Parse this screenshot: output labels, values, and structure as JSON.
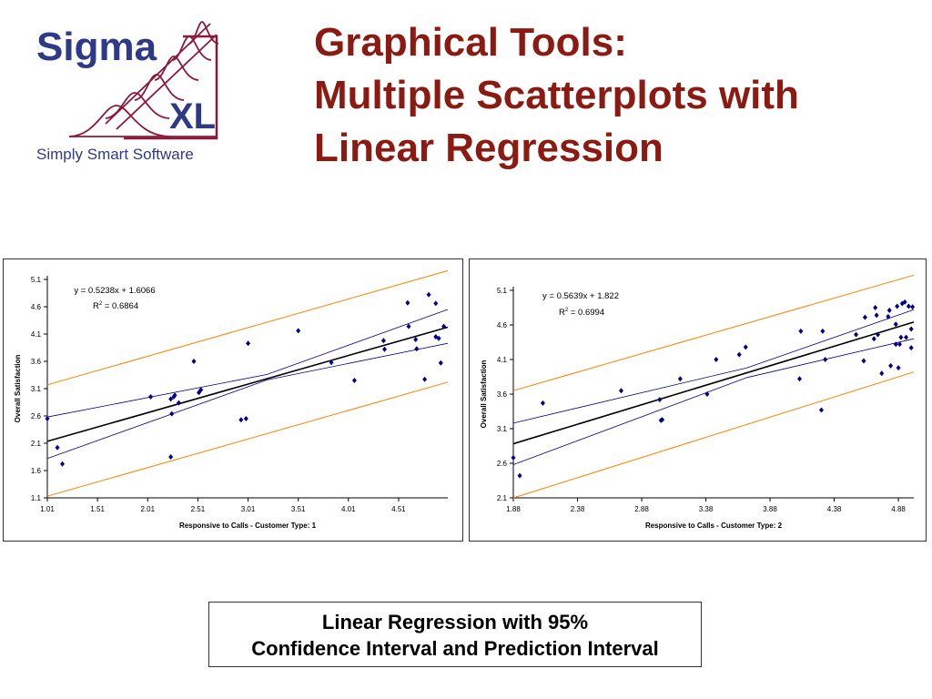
{
  "logo": {
    "brand_top": "Sigma",
    "brand_bottom": "XL",
    "tagline": "Simply Smart Software",
    "colors": {
      "navy": "#2E3A87",
      "maroon": "#8B1A3A"
    }
  },
  "title": {
    "line1": "Graphical Tools:",
    "line2": "Multiple Scatterplots with",
    "line3": "Linear Regression",
    "color": "#8B1A12"
  },
  "caption": {
    "line1": "Linear Regression with 95%",
    "line2": "Confidence Interval and Prediction Interval"
  },
  "chart_data": [
    {
      "type": "scatter",
      "xlabel": "Responsive to Calls - Customer Type: 1",
      "ylabel": "Overall Satisfaction",
      "xticks": [
        "1.01",
        "1.51",
        "2.01",
        "2.51",
        "3.01",
        "3.51",
        "4.01",
        "4.51"
      ],
      "yticks": [
        "1.1",
        "1.6",
        "2.1",
        "2.6",
        "3.1",
        "3.6",
        "4.1",
        "4.6",
        "5.1"
      ],
      "xlim": [
        1.01,
        5.0
      ],
      "ylim": [
        1.1,
        5.1
      ],
      "equation": "y = 0.5238x + 1.6066",
      "r2": "= 0.6864",
      "r2_prefix": "R",
      "regression": {
        "slope": 0.5238,
        "intercept": 1.6066
      },
      "ci_lower": [
        [
          1.01,
          1.82
        ],
        [
          3.2,
          3.26
        ],
        [
          5.0,
          3.93
        ]
      ],
      "ci_upper": [
        [
          1.01,
          2.58
        ],
        [
          3.2,
          3.36
        ],
        [
          5.0,
          4.55
        ]
      ],
      "pi_lower": [
        [
          1.01,
          1.13
        ],
        [
          5.0,
          3.22
        ]
      ],
      "pi_upper": [
        [
          1.01,
          3.17
        ],
        [
          5.0,
          5.26
        ]
      ],
      "points": [
        [
          1.01,
          2.55
        ],
        [
          1.11,
          2.02
        ],
        [
          1.16,
          1.72
        ],
        [
          2.04,
          2.95
        ],
        [
          2.24,
          2.91
        ],
        [
          2.27,
          2.95
        ],
        [
          2.25,
          2.64
        ],
        [
          2.28,
          2.98
        ],
        [
          2.32,
          2.84
        ],
        [
          2.24,
          1.85
        ],
        [
          2.47,
          3.6
        ],
        [
          2.52,
          3.03
        ],
        [
          2.54,
          3.08
        ],
        [
          2.94,
          2.53
        ],
        [
          2.99,
          2.55
        ],
        [
          3.01,
          3.93
        ],
        [
          3.51,
          4.16
        ],
        [
          3.84,
          3.58
        ],
        [
          4.07,
          3.25
        ],
        [
          4.36,
          3.98
        ],
        [
          4.37,
          3.82
        ],
        [
          4.6,
          4.67
        ],
        [
          4.61,
          4.24
        ],
        [
          4.68,
          4.0
        ],
        [
          4.69,
          3.83
        ],
        [
          4.77,
          3.27
        ],
        [
          4.81,
          4.82
        ],
        [
          4.88,
          4.66
        ],
        [
          4.88,
          4.05
        ],
        [
          4.91,
          4.02
        ],
        [
          4.93,
          3.57
        ],
        [
          4.96,
          4.24
        ]
      ],
      "colors": {
        "points": "#00008B",
        "regression": "#000000",
        "ci": "#00008B",
        "pi": "#FF8000"
      }
    },
    {
      "type": "scatter",
      "xlabel": "Responsive to Calls - Customer Type: 2",
      "ylabel": "Overall Satisfaction",
      "xticks": [
        "1.88",
        "2.38",
        "2.88",
        "3.38",
        "3.88",
        "4.38",
        "4.88"
      ],
      "yticks": [
        "2.1",
        "2.6",
        "3.1",
        "3.6",
        "4.1",
        "4.6",
        "5.1"
      ],
      "xlim": [
        1.88,
        5.0
      ],
      "ylim": [
        2.1,
        5.1
      ],
      "equation": "y = 0.5639x + 1.822",
      "r2": "= 0.6994",
      "r2_prefix": "R",
      "regression": {
        "slope": 0.5639,
        "intercept": 1.822
      },
      "ci_lower": [
        [
          1.88,
          2.58
        ],
        [
          3.7,
          3.84
        ],
        [
          5.0,
          4.4
        ]
      ],
      "ci_upper": [
        [
          1.88,
          3.18
        ],
        [
          3.7,
          3.98
        ],
        [
          5.0,
          4.82
        ]
      ],
      "pi_lower": [
        [
          1.88,
          2.1
        ],
        [
          5.0,
          3.92
        ]
      ],
      "pi_upper": [
        [
          1.88,
          3.65
        ],
        [
          5.0,
          5.32
        ]
      ],
      "points": [
        [
          1.88,
          2.68
        ],
        [
          1.93,
          2.42
        ],
        [
          2.11,
          3.47
        ],
        [
          2.72,
          3.65
        ],
        [
          3.02,
          3.52
        ],
        [
          3.03,
          3.22
        ],
        [
          3.04,
          3.23
        ],
        [
          3.18,
          3.82
        ],
        [
          3.39,
          3.6
        ],
        [
          3.46,
          4.1
        ],
        [
          3.64,
          4.17
        ],
        [
          3.69,
          4.28
        ],
        [
          4.11,
          3.82
        ],
        [
          4.12,
          4.51
        ],
        [
          4.28,
          3.37
        ],
        [
          4.29,
          4.51
        ],
        [
          4.31,
          4.1
        ],
        [
          4.55,
          4.46
        ],
        [
          4.61,
          4.08
        ],
        [
          4.62,
          4.71
        ],
        [
          4.69,
          4.4
        ],
        [
          4.7,
          4.85
        ],
        [
          4.71,
          4.74
        ],
        [
          4.72,
          4.46
        ],
        [
          4.75,
          3.9
        ],
        [
          4.8,
          4.72
        ],
        [
          4.81,
          4.81
        ],
        [
          4.82,
          4.01
        ],
        [
          4.86,
          4.61
        ],
        [
          4.86,
          4.32
        ],
        [
          4.87,
          4.87
        ],
        [
          4.88,
          3.98
        ],
        [
          4.89,
          4.32
        ],
        [
          4.9,
          4.42
        ],
        [
          4.91,
          4.91
        ],
        [
          4.93,
          4.93
        ],
        [
          4.94,
          4.42
        ],
        [
          4.96,
          4.87
        ],
        [
          4.98,
          4.54
        ],
        [
          4.98,
          4.27
        ],
        [
          4.99,
          4.86
        ]
      ],
      "colors": {
        "points": "#00008B",
        "regression": "#000000",
        "ci": "#00008B",
        "pi": "#FF8000"
      }
    }
  ]
}
